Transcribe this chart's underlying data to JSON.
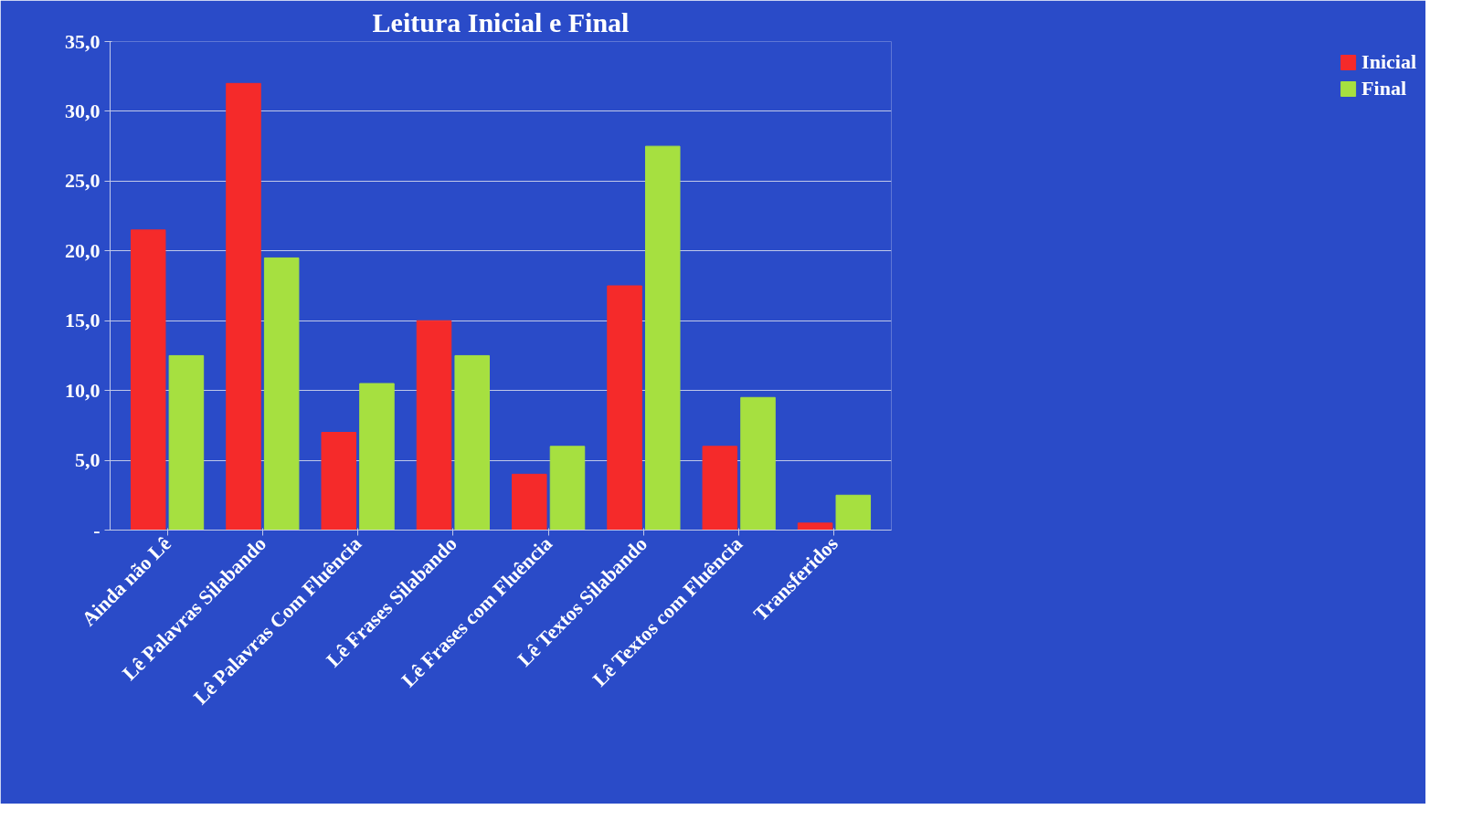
{
  "chart_data": {
    "type": "bar",
    "title": "Leitura Inicial e Final",
    "categories": [
      "Ainda não Lê",
      "Lê Palavras Silabando",
      "Lê Palavras Com Fluência",
      "Lê Frases Silabando",
      "Lê Frases com Fluência",
      "Lê Textos Silabando",
      "Lê Textos com Fluência",
      "Transferidos"
    ],
    "series": [
      {
        "name": "Inicial",
        "color": "#f52a2a",
        "values": [
          21.5,
          32,
          7,
          15,
          4,
          17.5,
          6,
          0.5
        ]
      },
      {
        "name": "Final",
        "color": "#a6e040",
        "values": [
          12.5,
          19.5,
          10.5,
          12.5,
          6,
          27.5,
          9.5,
          2.5
        ]
      }
    ],
    "ylim": [
      0,
      35
    ],
    "yticks": [
      {
        "value": 0,
        "label": "-"
      },
      {
        "value": 5,
        "label": "5,0"
      },
      {
        "value": 10,
        "label": "10,0"
      },
      {
        "value": 15,
        "label": "15,0"
      },
      {
        "value": 20,
        "label": "20,0"
      },
      {
        "value": 25,
        "label": "25,0"
      },
      {
        "value": 30,
        "label": "30,0"
      },
      {
        "value": 35,
        "label": "35,0"
      }
    ],
    "grid": "y",
    "legend": "right"
  }
}
